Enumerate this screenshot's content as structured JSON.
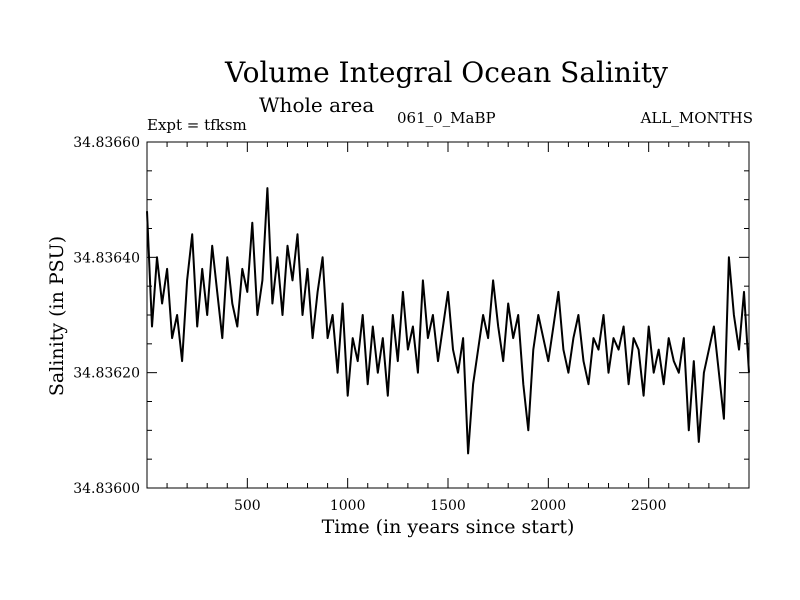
{
  "chart_data": {
    "type": "line",
    "title": "Volume Integral Ocean Salinity",
    "subtitle": "Whole area",
    "expt_label": "Expt = tfksm",
    "run_id": "061_0_MaBP",
    "months_label": "ALL_MONTHS",
    "xlabel": "Time (in years since start)",
    "ylabel": "Salinity (in PSU)",
    "xlim": [
      0,
      3000
    ],
    "ylim": [
      34.836,
      34.8366
    ],
    "xticks": [
      500,
      1000,
      1500,
      2000,
      2500
    ],
    "xtick_labels": [
      "500",
      "1000",
      "1500",
      "2000",
      "2500"
    ],
    "yticks": [
      34.836,
      34.8362,
      34.8364,
      34.8366
    ],
    "ytick_labels": [
      "34.83600",
      "34.83620",
      "34.83640",
      "34.83660"
    ],
    "grid": false,
    "series": [
      {
        "name": "Salinity",
        "x": [
          0,
          25,
          50,
          75,
          100,
          125,
          150,
          175,
          200,
          225,
          250,
          275,
          300,
          325,
          350,
          375,
          400,
          425,
          450,
          475,
          500,
          525,
          550,
          575,
          600,
          625,
          650,
          675,
          700,
          725,
          750,
          775,
          800,
          825,
          850,
          875,
          900,
          925,
          950,
          975,
          1000,
          1025,
          1050,
          1075,
          1100,
          1125,
          1150,
          1175,
          1200,
          1225,
          1250,
          1275,
          1300,
          1325,
          1350,
          1375,
          1400,
          1425,
          1450,
          1475,
          1500,
          1525,
          1550,
          1575,
          1600,
          1625,
          1650,
          1675,
          1700,
          1725,
          1750,
          1775,
          1800,
          1825,
          1850,
          1875,
          1900,
          1925,
          1950,
          1975,
          2000,
          2025,
          2050,
          2075,
          2100,
          2125,
          2150,
          2175,
          2200,
          2225,
          2250,
          2275,
          2300,
          2325,
          2350,
          2375,
          2400,
          2425,
          2450,
          2475,
          2500,
          2525,
          2550,
          2575,
          2600,
          2625,
          2650,
          2675,
          2700,
          2725,
          2750,
          2775,
          2800,
          2825,
          2850,
          2875,
          2900,
          2925,
          2950,
          2975,
          3000
        ],
        "values": [
          34.83648,
          34.83628,
          34.8364,
          34.83632,
          34.83638,
          34.83626,
          34.8363,
          34.83622,
          34.83636,
          34.83644,
          34.83628,
          34.83638,
          34.8363,
          34.83642,
          34.83634,
          34.83626,
          34.8364,
          34.83632,
          34.83628,
          34.83638,
          34.83634,
          34.83646,
          34.8363,
          34.83636,
          34.83652,
          34.83632,
          34.8364,
          34.8363,
          34.83642,
          34.83636,
          34.83644,
          34.8363,
          34.83638,
          34.83626,
          34.83634,
          34.8364,
          34.83626,
          34.8363,
          34.8362,
          34.83632,
          34.83616,
          34.83626,
          34.83622,
          34.8363,
          34.83618,
          34.83628,
          34.8362,
          34.83626,
          34.83616,
          34.8363,
          34.83622,
          34.83634,
          34.83624,
          34.83628,
          34.8362,
          34.83636,
          34.83626,
          34.8363,
          34.83622,
          34.83628,
          34.83634,
          34.83624,
          34.8362,
          34.83626,
          34.83606,
          34.83618,
          34.83624,
          34.8363,
          34.83626,
          34.83636,
          34.83628,
          34.83622,
          34.83632,
          34.83626,
          34.8363,
          34.83618,
          34.8361,
          34.83624,
          34.8363,
          34.83626,
          34.83622,
          34.83628,
          34.83634,
          34.83624,
          34.8362,
          34.83626,
          34.8363,
          34.83622,
          34.83618,
          34.83626,
          34.83624,
          34.8363,
          34.8362,
          34.83626,
          34.83624,
          34.83628,
          34.83618,
          34.83626,
          34.83624,
          34.83616,
          34.83628,
          34.8362,
          34.83624,
          34.83618,
          34.83626,
          34.83622,
          34.8362,
          34.83626,
          34.8361,
          34.83622,
          34.83608,
          34.8362,
          34.83624,
          34.83628,
          34.8362,
          34.83612,
          34.8364,
          34.8363,
          34.83624,
          34.83634,
          34.8362
        ]
      }
    ]
  }
}
